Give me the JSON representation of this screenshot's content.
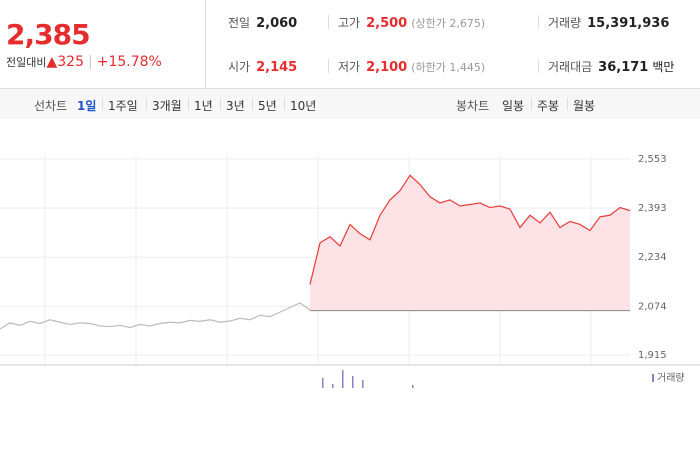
{
  "header": {
    "price": "2,385",
    "change_label": "전일대비",
    "change_arrow": "▲",
    "change": "325",
    "change_rate": "+15.78%",
    "stats": [
      [
        {
          "label": "전일",
          "value": "2,060"
        },
        {
          "label": "고가",
          "value": "2,500",
          "note": "(상한가 2,675)"
        },
        {
          "label": "거래량",
          "value": "15,391,936"
        }
      ],
      [
        {
          "label": "시가",
          "value": "2,145"
        },
        {
          "label": "저가",
          "value": "2,100",
          "note": "(하한가 1,445)"
        },
        {
          "label": "거래대금",
          "value": "36,171",
          "unit": "백만"
        }
      ]
    ]
  },
  "tabs": {
    "line_label": "선차트",
    "line_items": [
      "1일",
      "1주일",
      "3개월",
      "1년",
      "3년",
      "5년",
      "10년"
    ],
    "active": "1일",
    "candle_label": "봉차트",
    "candle_items": [
      "일봉",
      "주봉",
      "월봉"
    ]
  },
  "chart_data": {
    "type": "line",
    "ylim": [
      1883,
      2683
    ],
    "yticks": [
      {
        "value": 1915,
        "label": "1,915"
      },
      {
        "value": 2074,
        "label": "2,074"
      },
      {
        "value": 2234,
        "label": "2,234"
      },
      {
        "value": 2393,
        "label": "2,393"
      },
      {
        "value": 2553,
        "label": "2,553"
      }
    ],
    "baseline": 2060,
    "grid": true,
    "series": [
      {
        "color": "#bbbbbb",
        "values": [
          2000,
          2020,
          2012,
          2025,
          2018,
          2030,
          2022,
          2015,
          2020,
          2018,
          2010,
          2008,
          2012,
          2005,
          2015,
          2010,
          2018,
          2022,
          2020,
          2028,
          2025,
          2030,
          2022,
          2026,
          2035,
          2030,
          2045,
          2040,
          2055,
          2070,
          2085,
          2062,
          null,
          null,
          null,
          null,
          null,
          null,
          null,
          null,
          null,
          null,
          null,
          null,
          null,
          null,
          null,
          null,
          null,
          null,
          null,
          null,
          null,
          null,
          null,
          null,
          null,
          null,
          null,
          null,
          null,
          null,
          null,
          null
        ]
      },
      {
        "color": "#e83a3a",
        "fill": "#fde3e5",
        "values": [
          null,
          null,
          null,
          null,
          null,
          null,
          null,
          null,
          null,
          null,
          null,
          null,
          null,
          null,
          null,
          null,
          null,
          null,
          null,
          null,
          null,
          null,
          null,
          null,
          null,
          null,
          null,
          null,
          null,
          null,
          null,
          2145,
          2280,
          2300,
          2270,
          2340,
          2310,
          2290,
          2370,
          2420,
          2450,
          2500,
          2470,
          2430,
          2410,
          2420,
          2400,
          2405,
          2410,
          2395,
          2400,
          2390,
          2330,
          2370,
          2345,
          2380,
          2330,
          2350,
          2340,
          2320,
          2365,
          2370,
          2395,
          2385
        ]
      },
      {
        "name": "거래량",
        "color": "#8b7fc9",
        "axis": "y2",
        "values": [
          0,
          0,
          0,
          0,
          0,
          0,
          0,
          0,
          0,
          0,
          0,
          0,
          0,
          0,
          0,
          0,
          0,
          0,
          0,
          0,
          0,
          0,
          0,
          0,
          0,
          0,
          0,
          0,
          0,
          0,
          0,
          0,
          10,
          4,
          18,
          12,
          8,
          0,
          0,
          0,
          0,
          3,
          0,
          0,
          0,
          0,
          0,
          0,
          0,
          0,
          0,
          0,
          0,
          0,
          0,
          0,
          0,
          0,
          0,
          0,
          0,
          0,
          0,
          0
        ]
      }
    ],
    "y2lim": [
      0,
      20
    ]
  }
}
